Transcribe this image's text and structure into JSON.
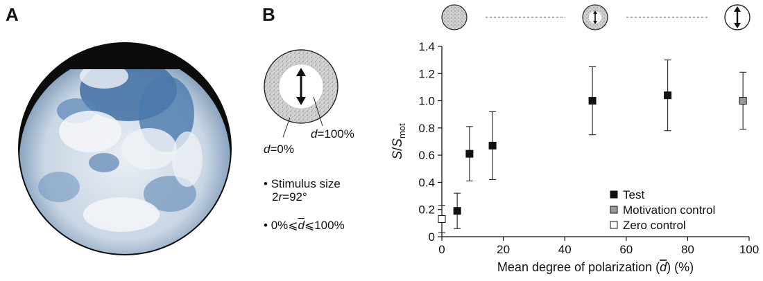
{
  "panel_a": {
    "label": "A"
  },
  "panel_b": {
    "label": "B",
    "stimulus": {
      "inner_label_var": "d",
      "inner_label_val": "=100%",
      "outer_label_var": "d",
      "outer_label_val": "=0%"
    },
    "bullets": {
      "size_line1": "Stimulus size",
      "size_line2_pre": "2",
      "size_line2_var": "r",
      "size_line2_post": "=92°",
      "range_pre": "0%⩽",
      "range_var": "d",
      "range_post": "⩽100%"
    }
  },
  "colors": {
    "test": "#111111",
    "motivation": "#9a9a9a",
    "zero": "#ffffff"
  },
  "chart_data": {
    "type": "scatter",
    "xlabel_pre": "Mean degree of polarization (",
    "xlabel_var": "d",
    "xlabel_post": ") (%)",
    "ylabel_s": "S",
    "ylabel_slash": "/",
    "ylabel_sub": "mot",
    "xlim": [
      0,
      100
    ],
    "ylim": [
      0,
      1.4
    ],
    "x_ticks": [
      0,
      20,
      40,
      60,
      80,
      100
    ],
    "y_ticks": [
      0,
      0.2,
      0.4,
      0.6,
      0.8,
      1.0,
      1.2,
      1.4
    ],
    "y_tick_labels": [
      "0",
      "0.2",
      "0.4",
      "0.6",
      "0.8",
      "1.0",
      "1.2",
      "1.4"
    ],
    "legend_placement": "bottom-right",
    "series": [
      {
        "name": "Test",
        "marker": "filled-square",
        "points": [
          {
            "x": 5,
            "y": 0.19,
            "err": 0.13
          },
          {
            "x": 9,
            "y": 0.61,
            "err": 0.2
          },
          {
            "x": 16.5,
            "y": 0.67,
            "err": 0.25
          },
          {
            "x": 49,
            "y": 1.0,
            "err": 0.25
          },
          {
            "x": 73.5,
            "y": 1.04,
            "err": 0.26
          }
        ]
      },
      {
        "name": "Motivation control",
        "marker": "grey-square",
        "points": [
          {
            "x": 98,
            "y": 1.0,
            "err": 0.21
          }
        ]
      },
      {
        "name": "Zero control",
        "marker": "open-square",
        "points": [
          {
            "x": 0,
            "y": 0.13,
            "err": 0.1
          }
        ]
      }
    ]
  }
}
